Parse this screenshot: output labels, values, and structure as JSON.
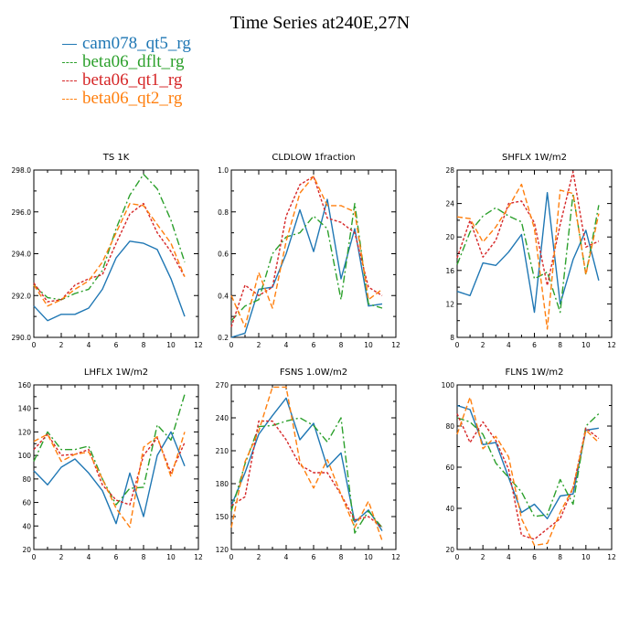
{
  "title": "Time Series at240E,27N",
  "legend": [
    {
      "name": "cam078_qt5_rg",
      "color": "#1f77b4",
      "dash": ""
    },
    {
      "name": "beta06_dflt_rg",
      "color": "#2ca02c",
      "dash": "8,3,2,3"
    },
    {
      "name": "beta06_qt1_rg",
      "color": "#d62728",
      "dash": "3,2"
    },
    {
      "name": "beta06_qt2_rg",
      "color": "#ff7f0e",
      "dash": "6,3"
    }
  ],
  "chart_data": [
    {
      "type": "line",
      "title": "TS   1K",
      "x": [
        0,
        1,
        2,
        3,
        4,
        5,
        6,
        7,
        8,
        9,
        10,
        11
      ],
      "xlim": [
        0,
        12
      ],
      "xticks": [
        "0",
        "2",
        "4",
        "6",
        "8",
        "10",
        "12"
      ],
      "ylim": [
        290,
        298
      ],
      "yticks": [
        "290.0",
        "292.0",
        "294.0",
        "296.0",
        "298.0"
      ],
      "series": [
        {
          "name": "cam078_qt5_rg",
          "values": [
            291.5,
            290.8,
            291.1,
            291.1,
            291.4,
            292.3,
            293.8,
            294.6,
            294.5,
            294.2,
            292.8,
            291.0
          ]
        },
        {
          "name": "beta06_dflt_rg",
          "values": [
            292.5,
            291.9,
            291.8,
            292.1,
            292.3,
            293.2,
            295.2,
            296.8,
            297.8,
            297.1,
            295.6,
            293.6
          ]
        },
        {
          "name": "beta06_qt1_rg",
          "values": [
            292.6,
            291.7,
            291.8,
            292.5,
            292.8,
            293.0,
            294.5,
            295.9,
            296.4,
            295.0,
            294.1,
            292.9
          ]
        },
        {
          "name": "beta06_qt2_rg",
          "values": [
            292.5,
            291.5,
            291.8,
            292.3,
            292.7,
            293.6,
            295.0,
            296.4,
            296.3,
            295.4,
            294.5,
            292.9
          ]
        }
      ]
    },
    {
      "type": "line",
      "title": "CLDLOW   1fraction",
      "x": [
        0,
        1,
        2,
        3,
        4,
        5,
        6,
        7,
        8,
        9,
        10,
        11
      ],
      "xlim": [
        0,
        12
      ],
      "xticks": [
        "0",
        "2",
        "4",
        "6",
        "8",
        "10",
        "12"
      ],
      "ylim": [
        0.2,
        1.0
      ],
      "yticks": [
        "0.2",
        "0.4",
        "0.6",
        "0.8",
        "1.0"
      ],
      "series": [
        {
          "name": "cam078_qt5_rg",
          "values": [
            0.2,
            0.22,
            0.43,
            0.44,
            0.6,
            0.81,
            0.61,
            0.86,
            0.48,
            0.72,
            0.35,
            0.36
          ]
        },
        {
          "name": "beta06_dflt_rg",
          "values": [
            0.28,
            0.35,
            0.38,
            0.6,
            0.68,
            0.7,
            0.78,
            0.72,
            0.38,
            0.84,
            0.36,
            0.34
          ]
        },
        {
          "name": "beta06_qt1_rg",
          "values": [
            0.25,
            0.45,
            0.4,
            0.44,
            0.78,
            0.93,
            0.97,
            0.77,
            0.75,
            0.7,
            0.44,
            0.4
          ]
        },
        {
          "name": "beta06_qt2_rg",
          "values": [
            0.4,
            0.25,
            0.51,
            0.34,
            0.66,
            0.89,
            0.97,
            0.83,
            0.83,
            0.8,
            0.38,
            0.43
          ]
        }
      ]
    },
    {
      "type": "line",
      "title": "SHFLX   1W/m2",
      "x": [
        0,
        1,
        2,
        3,
        4,
        5,
        6,
        7,
        8,
        9,
        10,
        11
      ],
      "xlim": [
        0,
        12
      ],
      "xticks": [
        "0",
        "2",
        "4",
        "6",
        "8",
        "10",
        "12"
      ],
      "ylim": [
        8,
        28
      ],
      "yticks": [
        "8",
        "12",
        "16",
        "20",
        "24",
        "28"
      ],
      "series": [
        {
          "name": "cam078_qt5_rg",
          "values": [
            13.5,
            13.0,
            16.9,
            16.6,
            18.2,
            20.3,
            11.0,
            25.3,
            12.0,
            17.3,
            20.8,
            14.8
          ]
        },
        {
          "name": "beta06_dflt_rg",
          "values": [
            16.7,
            20.6,
            22.5,
            23.5,
            22.5,
            21.8,
            15.0,
            15.8,
            11.0,
            25.2,
            15.5,
            23.8
          ]
        },
        {
          "name": "beta06_qt1_rg",
          "values": [
            17.5,
            22.0,
            17.6,
            19.6,
            24.0,
            24.3,
            21.7,
            14.2,
            21.5,
            27.8,
            18.8,
            19.5
          ]
        },
        {
          "name": "beta06_qt2_rg",
          "values": [
            22.4,
            22.2,
            19.4,
            21.2,
            23.6,
            26.3,
            21.0,
            9.0,
            25.6,
            25.2,
            15.5,
            22.8
          ]
        }
      ]
    },
    {
      "type": "line",
      "title": "LHFLX   1W/m2",
      "x": [
        0,
        1,
        2,
        3,
        4,
        5,
        6,
        7,
        8,
        9,
        10,
        11
      ],
      "xlim": [
        0,
        12
      ],
      "xticks": [
        "0",
        "2",
        "4",
        "6",
        "8",
        "10",
        "12"
      ],
      "ylim": [
        20,
        160
      ],
      "yticks": [
        "20",
        "40",
        "60",
        "80",
        "100",
        "120",
        "140",
        "160"
      ],
      "series": [
        {
          "name": "cam078_qt5_rg",
          "values": [
            87,
            75,
            90,
            97,
            85,
            70,
            42,
            85,
            48,
            100,
            120,
            91
          ]
        },
        {
          "name": "beta06_dflt_rg",
          "values": [
            95,
            120,
            105,
            105,
            108,
            80,
            58,
            72,
            73,
            126,
            113,
            152
          ]
        },
        {
          "name": "beta06_qt1_rg",
          "values": [
            105,
            118,
            100,
            101,
            105,
            75,
            62,
            58,
            100,
            115,
            85,
            111
          ]
        },
        {
          "name": "beta06_qt2_rg",
          "values": [
            112,
            118,
            95,
            101,
            103,
            80,
            55,
            39,
            107,
            116,
            82,
            120
          ]
        }
      ]
    },
    {
      "type": "line",
      "title": "FSNS   1.0W/m2",
      "x": [
        0,
        1,
        2,
        3,
        4,
        5,
        6,
        7,
        8,
        9,
        10,
        11
      ],
      "xlim": [
        0,
        12
      ],
      "xticks": [
        "0",
        "2",
        "4",
        "6",
        "8",
        "10",
        "12"
      ],
      "ylim": [
        120,
        270
      ],
      "yticks": [
        "120",
        "150",
        "180",
        "210",
        "240",
        "270"
      ],
      "series": [
        {
          "name": "cam078_qt5_rg",
          "values": [
            160,
            190,
            225,
            242,
            258,
            220,
            235,
            195,
            208,
            145,
            156,
            137
          ]
        },
        {
          "name": "beta06_dflt_rg",
          "values": [
            155,
            198,
            232,
            233,
            237,
            240,
            233,
            218,
            240,
            135,
            155,
            140
          ]
        },
        {
          "name": "beta06_qt1_rg",
          "values": [
            160,
            168,
            237,
            237,
            220,
            197,
            190,
            190,
            170,
            147,
            150,
            140
          ]
        },
        {
          "name": "beta06_qt2_rg",
          "values": [
            140,
            200,
            228,
            268,
            268,
            200,
            176,
            202,
            170,
            140,
            164,
            128
          ]
        }
      ]
    },
    {
      "type": "line",
      "title": "FLNS   1W/m2",
      "x": [
        0,
        1,
        2,
        3,
        4,
        5,
        6,
        7,
        8,
        9,
        10,
        11
      ],
      "xlim": [
        0,
        12
      ],
      "xticks": [
        "0",
        "2",
        "4",
        "6",
        "8",
        "10",
        "12"
      ],
      "ylim": [
        20,
        100
      ],
      "yticks": [
        "20",
        "40",
        "60",
        "80",
        "100"
      ],
      "series": [
        {
          "name": "cam078_qt5_rg",
          "values": [
            90,
            88,
            71,
            72,
            55,
            38,
            42,
            35,
            46,
            47,
            78,
            79
          ]
        },
        {
          "name": "beta06_dflt_rg",
          "values": [
            84,
            82,
            76,
            62,
            55,
            48,
            36,
            37,
            54,
            42,
            80,
            86
          ]
        },
        {
          "name": "beta06_qt1_rg",
          "values": [
            86,
            72,
            82,
            73,
            59,
            27,
            25,
            30,
            35,
            50,
            79,
            74
          ]
        },
        {
          "name": "beta06_qt2_rg",
          "values": [
            76,
            94,
            69,
            75,
            65,
            35,
            22,
            23,
            38,
            50,
            78,
            72
          ]
        }
      ]
    }
  ]
}
